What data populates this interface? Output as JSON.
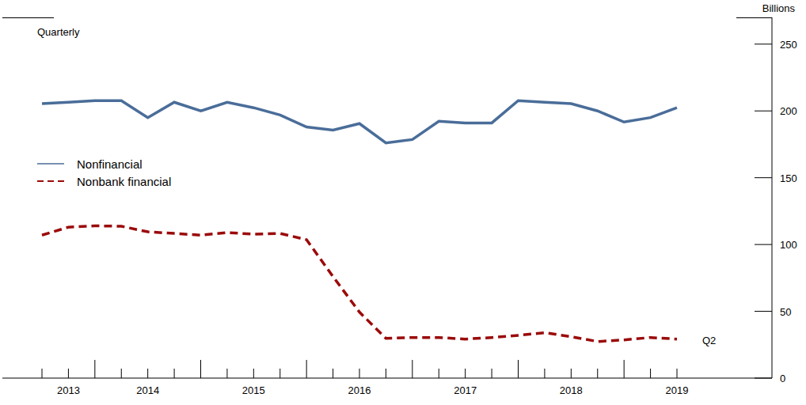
{
  "chart_data": {
    "type": "line",
    "subtitle": "Quarterly",
    "ylabel": "Billions",
    "categories": [
      null,
      "2013",
      null,
      null,
      "2014",
      null,
      null,
      null,
      "2015",
      null,
      null,
      null,
      "2016",
      null,
      null,
      null,
      "2017",
      null,
      null,
      null,
      "2018",
      null,
      null,
      null,
      "2019"
    ],
    "series": [
      {
        "name": "Nonfinancial",
        "color": "#4a6d99",
        "line_style": "solid",
        "values": [
          205.4,
          206.5,
          207.7,
          207.7,
          195,
          206.5,
          200,
          206.5,
          202.4,
          197,
          188,
          185.7,
          190.5,
          176,
          178.6,
          192.3,
          191,
          191,
          207.7,
          206.5,
          205.4,
          200,
          191.7,
          195,
          202.4
        ]
      },
      {
        "name": "Nonbank financial",
        "color": "#9b0a0a",
        "line_style": "dashed",
        "values": [
          107,
          113,
          114,
          113.7,
          109.5,
          108.3,
          107,
          109,
          107.7,
          108.3,
          103.6,
          76,
          49.4,
          29.8,
          30.4,
          30.4,
          29.2,
          30.4,
          32,
          34,
          31,
          27.4,
          28.6,
          30.4,
          29.2
        ]
      }
    ],
    "ylim": [
      0,
      270
    ],
    "yticks": [
      0,
      50,
      100,
      150,
      200,
      250
    ],
    "grid": false,
    "annotations": [
      "Q2"
    ]
  }
}
